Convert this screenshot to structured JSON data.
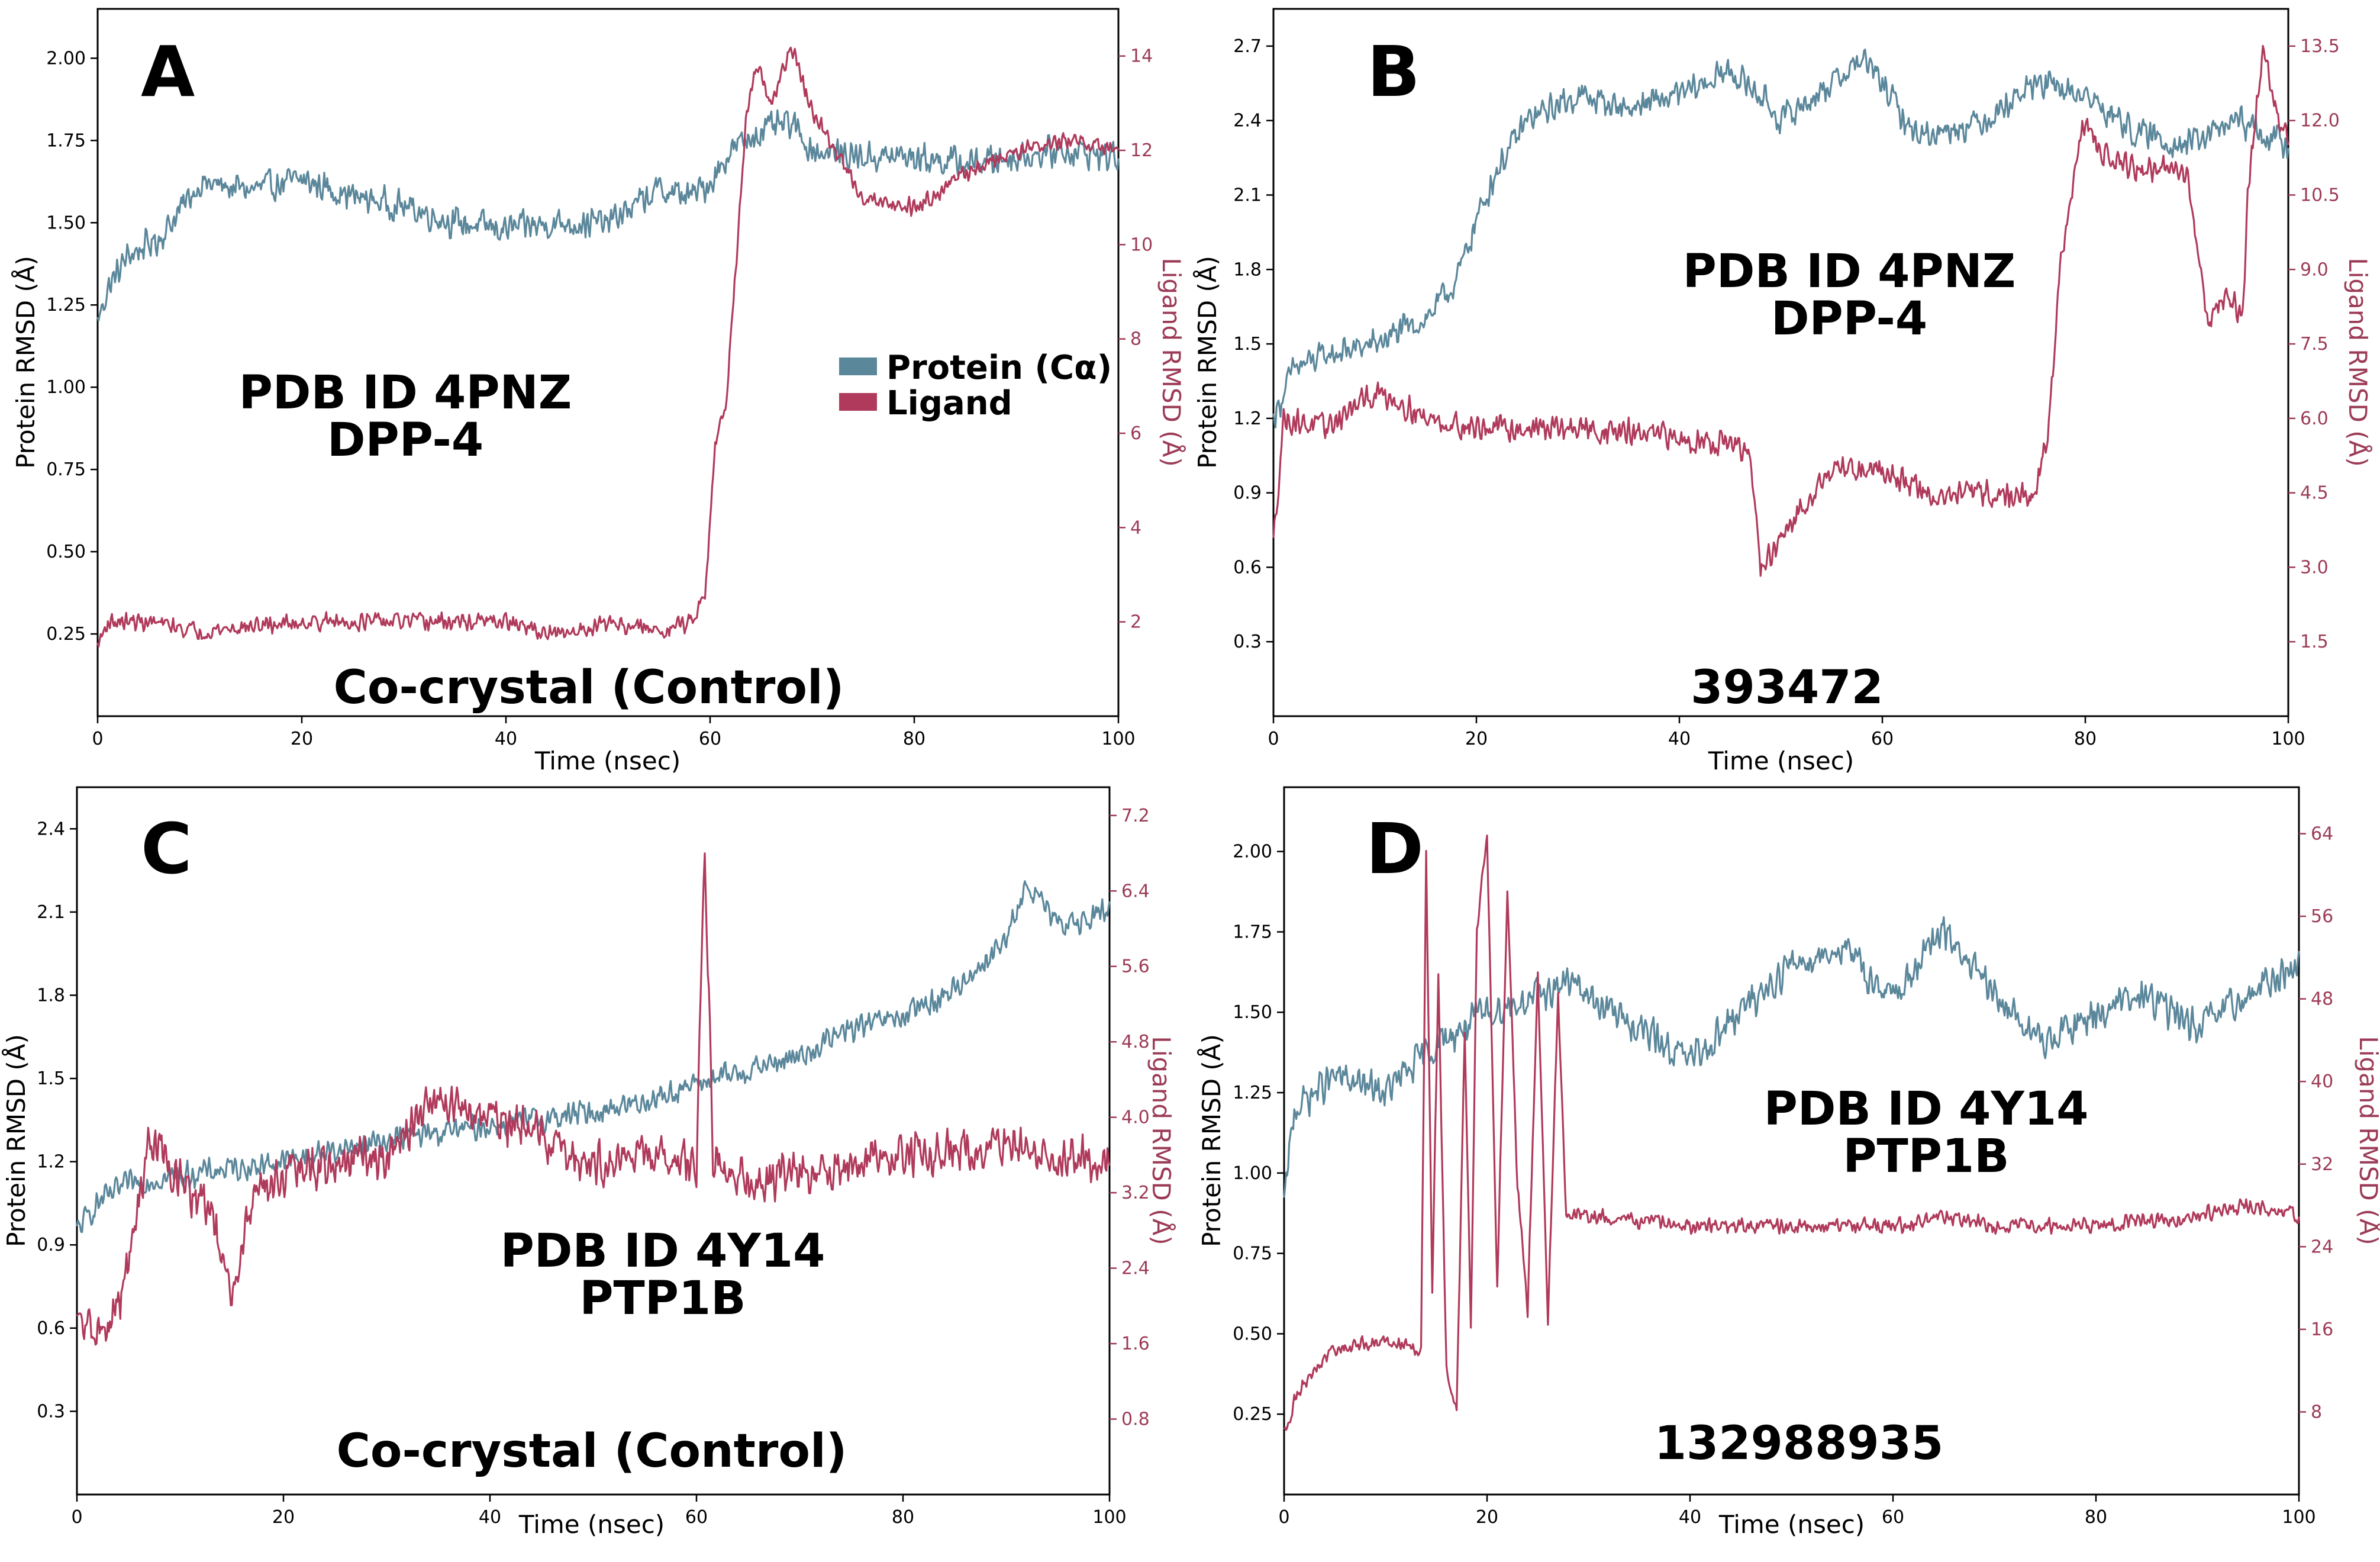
{
  "colors": {
    "protein": "#5b879b",
    "ligand": "#b03a5b",
    "axis": "#000000",
    "ligand_axis": "#9c3b56"
  },
  "chart_data": [
    {
      "type": "line",
      "panel": "A",
      "xlabel": "Time (nsec)",
      "ylabel_left": "Protein RMSD (Å)",
      "ylabel_right": "Ligand RMSD (Å)",
      "xlim": [
        0,
        100
      ],
      "ylim_left": [
        0,
        2.15
      ],
      "ylim_right": [
        0,
        15
      ],
      "xticks": [
        "0",
        "20",
        "40",
        "60",
        "80",
        "100"
      ],
      "yticks_left": [
        "0.25",
        "0.50",
        "0.75",
        "1.00",
        "1.25",
        "1.50",
        "1.75",
        "2.00"
      ],
      "yticks_right": [
        "2",
        "4",
        "6",
        "8",
        "10",
        "12",
        "14"
      ],
      "annotation_title": "PDB ID  4PNZ",
      "annotation_target": "DPP-4",
      "compound_label": "Co-crystal (Control)",
      "legend": [
        "Protein (Cα)",
        "Ligand"
      ],
      "series": [
        {
          "name": "Protein (Cα)",
          "axis": "left",
          "noise": 0.055,
          "x": [
            0,
            1,
            3,
            6,
            10,
            15,
            20,
            25,
            30,
            35,
            40,
            45,
            50,
            55,
            58,
            60,
            62,
            65,
            68,
            70,
            75,
            80,
            85,
            90,
            95,
            100
          ],
          "y": [
            1.2,
            1.3,
            1.4,
            1.45,
            1.62,
            1.6,
            1.63,
            1.58,
            1.55,
            1.5,
            1.48,
            1.5,
            1.5,
            1.6,
            1.58,
            1.62,
            1.72,
            1.78,
            1.8,
            1.72,
            1.7,
            1.7,
            1.68,
            1.7,
            1.72,
            1.7
          ]
        },
        {
          "name": "Ligand",
          "axis": "right",
          "noise": 0.22,
          "x": [
            0,
            1,
            5,
            10,
            20,
            30,
            40,
            45,
            50,
            55,
            58,
            59.5,
            60.5,
            61.5,
            62.5,
            63.5,
            64.5,
            66,
            68,
            70,
            75,
            80,
            85,
            90,
            95,
            100
          ],
          "y": [
            1.5,
            2.0,
            2.0,
            1.8,
            2.0,
            2.0,
            2.0,
            1.7,
            2.0,
            1.8,
            2.0,
            2.6,
            5.8,
            6.5,
            9.5,
            12.5,
            13.8,
            13.0,
            14.2,
            12.8,
            11.0,
            10.8,
            11.5,
            12.0,
            12.2,
            12.0
          ]
        }
      ]
    },
    {
      "type": "line",
      "panel": "B",
      "xlabel": "Time (nsec)",
      "ylabel_left": "Protein RMSD (Å)",
      "ylabel_right": "Ligand RMSD (Å)",
      "xlim": [
        0,
        100
      ],
      "ylim_left": [
        0,
        2.85
      ],
      "ylim_right": [
        0,
        14.25
      ],
      "xticks": [
        "0",
        "20",
        "40",
        "60",
        "80",
        "100"
      ],
      "yticks_left": [
        "0.3",
        "0.6",
        "0.9",
        "1.2",
        "1.5",
        "1.8",
        "2.1",
        "2.4",
        "2.7"
      ],
      "yticks_right": [
        "1.5",
        "3.0",
        "4.5",
        "6.0",
        "7.5",
        "9.0",
        "10.5",
        "12.0",
        "13.5"
      ],
      "annotation_title": "PDB ID  4PNZ",
      "annotation_target": "DPP-4",
      "compound_label": "393472",
      "series": [
        {
          "name": "Protein (Cα)",
          "axis": "left",
          "noise": 0.07,
          "x": [
            0,
            2,
            5,
            10,
            15,
            18,
            20,
            22,
            25,
            30,
            35,
            40,
            45,
            48,
            50,
            55,
            58,
            60,
            63,
            65,
            70,
            75,
            80,
            85,
            90,
            95,
            100
          ],
          "y": [
            1.2,
            1.4,
            1.45,
            1.5,
            1.6,
            1.75,
            2.0,
            2.2,
            2.4,
            2.5,
            2.45,
            2.5,
            2.6,
            2.5,
            2.4,
            2.55,
            2.65,
            2.55,
            2.35,
            2.35,
            2.4,
            2.55,
            2.5,
            2.35,
            2.3,
            2.4,
            2.3
          ]
        },
        {
          "name": "Ligand",
          "axis": "right",
          "noise": 0.32,
          "x": [
            0,
            1,
            5,
            10,
            12,
            15,
            20,
            30,
            40,
            45,
            47,
            48,
            50,
            53,
            55,
            60,
            65,
            70,
            75,
            76.5,
            77.5,
            79,
            80,
            81,
            85,
            90,
            92,
            94,
            95.5,
            96,
            97.5,
            99,
            100
          ],
          "y": [
            3.5,
            6.0,
            5.8,
            6.5,
            6.4,
            6.0,
            5.8,
            5.8,
            5.6,
            5.5,
            5.2,
            3.0,
            3.5,
            4.5,
            5.0,
            5.0,
            4.4,
            4.5,
            4.4,
            6.0,
            9.0,
            11.0,
            12.0,
            11.5,
            11.0,
            11.0,
            8.0,
            8.5,
            8.0,
            10.5,
            13.5,
            12.0,
            11.5
          ]
        }
      ]
    },
    {
      "type": "line",
      "panel": "C",
      "xlabel": "Time (nsec)",
      "ylabel_left": "Protein RMSD (Å)",
      "ylabel_right": "Ligand RMSD (Å)",
      "xlim": [
        0,
        100
      ],
      "ylim_left": [
        0,
        2.55
      ],
      "ylim_right": [
        0,
        7.5
      ],
      "xticks": [
        "0",
        "20",
        "40",
        "60",
        "80",
        "100"
      ],
      "yticks_left": [
        "0.3",
        "0.6",
        "0.9",
        "1.2",
        "1.5",
        "1.8",
        "2.1",
        "2.4"
      ],
      "yticks_right": [
        "0.8",
        "1.6",
        "2.4",
        "3.2",
        "4.0",
        "4.8",
        "5.6",
        "6.4",
        "7.2"
      ],
      "annotation_title": "PDB ID  4Y14",
      "annotation_target": "PTP1B",
      "compound_label": "Co-crystal (Control)",
      "series": [
        {
          "name": "Protein (Cα)",
          "axis": "left",
          "noise": 0.055,
          "x": [
            0,
            2,
            5,
            10,
            20,
            30,
            40,
            50,
            55,
            60,
            65,
            70,
            75,
            80,
            85,
            90,
            92,
            95,
            100
          ],
          "y": [
            0.95,
            1.05,
            1.12,
            1.15,
            1.2,
            1.28,
            1.33,
            1.38,
            1.42,
            1.48,
            1.53,
            1.58,
            1.68,
            1.72,
            1.82,
            2.0,
            2.2,
            2.05,
            2.1
          ]
        },
        {
          "name": "Ligand",
          "axis": "right",
          "noise": 0.28,
          "x": [
            0,
            3,
            5,
            7,
            10,
            13,
            15,
            17,
            20,
            30,
            35,
            40,
            45,
            50,
            55,
            60,
            60.8,
            61.6,
            65,
            70,
            80,
            90,
            95,
            100
          ],
          "y": [
            1.8,
            1.7,
            2.4,
            3.8,
            3.3,
            3.0,
            2.0,
            3.2,
            3.4,
            3.6,
            4.2,
            4.0,
            3.8,
            3.5,
            3.6,
            3.5,
            6.9,
            3.6,
            3.3,
            3.4,
            3.6,
            3.7,
            3.6,
            3.5
          ]
        }
      ]
    },
    {
      "type": "line",
      "panel": "D",
      "xlabel": "Time (nsec)",
      "ylabel_left": "Protein RMSD (Å)",
      "ylabel_right": "Ligand RMSD (Å)",
      "xlim": [
        0,
        100
      ],
      "ylim_left": [
        0,
        2.2
      ],
      "ylim_right": [
        0,
        68.5
      ],
      "xticks": [
        "0",
        "20",
        "40",
        "60",
        "80",
        "100"
      ],
      "yticks_left": [
        "0.25",
        "0.50",
        "0.75",
        "1.00",
        "1.25",
        "1.50",
        "1.75",
        "2.00"
      ],
      "yticks_right": [
        "8",
        "16",
        "24",
        "32",
        "40",
        "48",
        "56",
        "64"
      ],
      "annotation_title": "PDB ID  4Y14",
      "annotation_target": "PTP1B",
      "compound_label": "132988935",
      "series": [
        {
          "name": "Protein (Cα)",
          "axis": "left",
          "noise": 0.065,
          "x": [
            0,
            1,
            5,
            10,
            15,
            20,
            25,
            28,
            30,
            35,
            40,
            45,
            50,
            55,
            58,
            60,
            65,
            70,
            75,
            80,
            85,
            90,
            95,
            100
          ],
          "y": [
            0.9,
            1.2,
            1.3,
            1.25,
            1.4,
            1.5,
            1.55,
            1.6,
            1.55,
            1.45,
            1.35,
            1.5,
            1.65,
            1.7,
            1.6,
            1.55,
            1.75,
            1.55,
            1.4,
            1.5,
            1.55,
            1.45,
            1.55,
            1.65
          ]
        },
        {
          "name": "Ligand",
          "axis": "right",
          "noise": 0.9,
          "x": [
            0,
            1,
            3,
            5,
            10,
            13.5,
            14,
            14.6,
            15.2,
            16,
            17,
            17.8,
            18.4,
            19,
            20,
            21,
            22,
            23,
            24,
            25,
            26,
            27,
            27.8,
            30,
            40,
            50,
            60,
            65,
            70,
            80,
            90,
            95,
            100
          ],
          "y": [
            6,
            9,
            12,
            14,
            15,
            14,
            62,
            20,
            50,
            12,
            8,
            45,
            16,
            55,
            64,
            20,
            58,
            30,
            18,
            50,
            17,
            48,
            27,
            27,
            26,
            26,
            26,
            27,
            26,
            26,
            27,
            28,
            27
          ]
        }
      ]
    }
  ]
}
